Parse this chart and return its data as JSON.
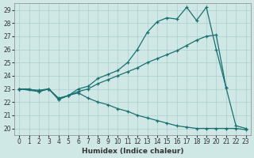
{
  "xlabel": "Humidex (Indice chaleur)",
  "xlim": [
    -0.5,
    23.5
  ],
  "ylim": [
    19.5,
    29.5
  ],
  "xticks": [
    0,
    1,
    2,
    3,
    4,
    5,
    6,
    7,
    8,
    9,
    10,
    11,
    12,
    13,
    14,
    15,
    16,
    17,
    18,
    19,
    20,
    21,
    22,
    23
  ],
  "yticks": [
    20,
    21,
    22,
    23,
    24,
    25,
    26,
    27,
    28,
    29
  ],
  "background_color": "#cfe8e6",
  "grid_color": "#aacfcd",
  "line_color": "#1a7070",
  "series_top": {
    "x": [
      0,
      1,
      2,
      3,
      4,
      5,
      6,
      7,
      8,
      9,
      10,
      11,
      12,
      13,
      14,
      15,
      16,
      17,
      18,
      19,
      20,
      21,
      22,
      23
    ],
    "y": [
      23.0,
      23.0,
      22.8,
      23.0,
      22.2,
      22.5,
      23.0,
      23.2,
      23.8,
      24.1,
      24.4,
      25.0,
      26.0,
      27.3,
      28.1,
      28.4,
      28.3,
      29.2,
      28.2,
      29.2,
      26.0,
      23.1,
      20.2,
      20.0
    ]
  },
  "series_mid": {
    "x": [
      0,
      2,
      3,
      4,
      5,
      6,
      7,
      8,
      9,
      10,
      11,
      12,
      13,
      14,
      15,
      16,
      17,
      18,
      19,
      20,
      21
    ],
    "y": [
      23.0,
      22.9,
      23.0,
      22.3,
      22.5,
      22.8,
      23.0,
      23.4,
      23.7,
      24.0,
      24.3,
      24.6,
      25.0,
      25.3,
      25.6,
      25.9,
      26.3,
      26.7,
      27.0,
      27.1,
      23.1
    ]
  },
  "series_bot": {
    "x": [
      0,
      2,
      3,
      4,
      5,
      6,
      7,
      8,
      9,
      10,
      11,
      12,
      13,
      14,
      15,
      16,
      17,
      18,
      19,
      20,
      21,
      22,
      23
    ],
    "y": [
      23.0,
      22.8,
      23.0,
      22.2,
      22.5,
      22.7,
      22.3,
      22.0,
      21.8,
      21.5,
      21.3,
      21.0,
      20.8,
      20.6,
      20.4,
      20.2,
      20.1,
      20.0,
      20.0,
      20.0,
      20.0,
      20.0,
      19.9
    ]
  }
}
